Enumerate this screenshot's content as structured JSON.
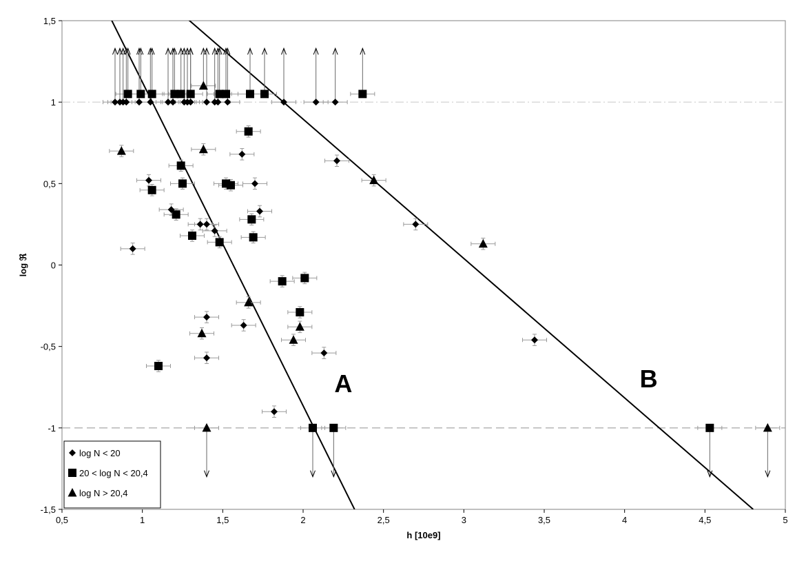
{
  "chart_data": {
    "type": "scatter",
    "xlabel": "h [10e9]",
    "ylabel": "log ℜ",
    "xlim": [
      0.5,
      5
    ],
    "ylim": [
      -1.5,
      1.5
    ],
    "xticks": [
      "0,5",
      "1",
      "1,5",
      "2",
      "2,5",
      "3",
      "3,5",
      "4",
      "4,5",
      "5"
    ],
    "xtick_values": [
      0.5,
      1,
      1.5,
      2,
      2.5,
      3,
      3.5,
      4,
      4.5,
      5
    ],
    "yticks": [
      "1,5",
      "1",
      "0,5",
      "0",
      "-0,5",
      "-1",
      "-1,5"
    ],
    "ytick_values": [
      1.5,
      1,
      0.5,
      0,
      -0.5,
      -1,
      -1.5
    ],
    "grid": false,
    "reference_lines": [
      {
        "y": 1,
        "style": "dashed"
      },
      {
        "y": -1,
        "style": "dashed"
      }
    ],
    "fit_lines": [
      {
        "label": "A",
        "points": [
          [
            0.8,
            1.52
          ],
          [
            2.32,
            -1.5
          ]
        ],
        "label_at": [
          2.25,
          -0.78
        ]
      },
      {
        "label": "B",
        "points": [
          [
            1.27,
            1.52
          ],
          [
            4.8,
            -1.5
          ]
        ],
        "label_at": [
          4.15,
          -0.75
        ]
      }
    ],
    "legend": {
      "placement": "bottom-left",
      "entries": [
        {
          "marker": "diamond",
          "label": "log N < 20"
        },
        {
          "marker": "square",
          "label": "20 < log N < 20,4"
        },
        {
          "marker": "triangle",
          "label": "log N > 20,4"
        }
      ]
    },
    "series": [
      {
        "marker": "diamond",
        "points": [
          {
            "x": 0.94,
            "y": 0.1
          },
          {
            "x": 1.04,
            "y": 0.52
          },
          {
            "x": 1.18,
            "y": 0.34
          },
          {
            "x": 1.36,
            "y": 0.25
          },
          {
            "x": 1.4,
            "y": 0.25
          },
          {
            "x": 1.45,
            "y": 0.21
          },
          {
            "x": 1.62,
            "y": 0.68
          },
          {
            "x": 1.7,
            "y": 0.5
          },
          {
            "x": 1.73,
            "y": 0.33
          },
          {
            "x": 1.4,
            "y": -0.32
          },
          {
            "x": 1.63,
            "y": -0.37
          },
          {
            "x": 1.4,
            "y": -0.57
          },
          {
            "x": 1.82,
            "y": -0.9
          },
          {
            "x": 2.13,
            "y": -0.54
          },
          {
            "x": 2.21,
            "y": 0.64
          },
          {
            "x": 2.7,
            "y": 0.25
          },
          {
            "x": 3.44,
            "y": -0.46
          }
        ]
      },
      {
        "marker": "diamond",
        "limit": "lower",
        "points": [
          {
            "x": 0.83,
            "y": 1
          },
          {
            "x": 0.86,
            "y": 1
          },
          {
            "x": 0.88,
            "y": 1
          },
          {
            "x": 0.9,
            "y": 1
          },
          {
            "x": 0.98,
            "y": 1
          },
          {
            "x": 1.05,
            "y": 1
          },
          {
            "x": 1.16,
            "y": 1
          },
          {
            "x": 1.19,
            "y": 1
          },
          {
            "x": 1.26,
            "y": 1
          },
          {
            "x": 1.28,
            "y": 1
          },
          {
            "x": 1.3,
            "y": 1
          },
          {
            "x": 1.4,
            "y": 1
          },
          {
            "x": 1.45,
            "y": 1
          },
          {
            "x": 1.47,
            "y": 1
          },
          {
            "x": 1.53,
            "y": 1
          },
          {
            "x": 1.88,
            "y": 1
          },
          {
            "x": 2.08,
            "y": 1
          },
          {
            "x": 2.2,
            "y": 1
          }
        ]
      },
      {
        "marker": "square",
        "points": [
          {
            "x": 1.06,
            "y": 0.46
          },
          {
            "x": 1.21,
            "y": 0.31
          },
          {
            "x": 1.24,
            "y": 0.61
          },
          {
            "x": 1.25,
            "y": 0.5
          },
          {
            "x": 1.31,
            "y": 0.18
          },
          {
            "x": 1.48,
            "y": 0.14
          },
          {
            "x": 1.52,
            "y": 0.5
          },
          {
            "x": 1.55,
            "y": 0.49
          },
          {
            "x": 1.66,
            "y": 0.82
          },
          {
            "x": 1.68,
            "y": 0.28
          },
          {
            "x": 1.69,
            "y": 0.17
          },
          {
            "x": 1.87,
            "y": -0.1
          },
          {
            "x": 2.01,
            "y": -0.08
          },
          {
            "x": 1.98,
            "y": -0.29
          },
          {
            "x": 1.1,
            "y": -0.62
          }
        ]
      },
      {
        "marker": "square",
        "limit": "lower",
        "points": [
          {
            "x": 0.91,
            "y": 1.05
          },
          {
            "x": 0.99,
            "y": 1.05
          },
          {
            "x": 1.06,
            "y": 1.05
          },
          {
            "x": 1.2,
            "y": 1.05
          },
          {
            "x": 1.24,
            "y": 1.05
          },
          {
            "x": 1.3,
            "y": 1.05
          },
          {
            "x": 1.48,
            "y": 1.05
          },
          {
            "x": 1.52,
            "y": 1.05
          },
          {
            "x": 1.67,
            "y": 1.05
          },
          {
            "x": 1.76,
            "y": 1.05
          },
          {
            "x": 2.37,
            "y": 1.05
          }
        ]
      },
      {
        "marker": "square",
        "limit": "upper",
        "points": [
          {
            "x": 2.06,
            "y": -1
          },
          {
            "x": 2.19,
            "y": -1
          },
          {
            "x": 4.53,
            "y": -1
          }
        ]
      },
      {
        "marker": "triangle",
        "points": [
          {
            "x": 0.87,
            "y": 0.7
          },
          {
            "x": 1.38,
            "y": 0.71
          },
          {
            "x": 2.44,
            "y": 0.52
          },
          {
            "x": 3.12,
            "y": 0.13
          },
          {
            "x": 1.66,
            "y": -0.23
          },
          {
            "x": 1.37,
            "y": -0.42
          },
          {
            "x": 1.94,
            "y": -0.46
          },
          {
            "x": 1.98,
            "y": -0.38
          }
        ]
      },
      {
        "marker": "triangle",
        "limit": "lower",
        "points": [
          {
            "x": 1.38,
            "y": 1.1
          }
        ]
      },
      {
        "marker": "triangle",
        "limit": "upper",
        "points": [
          {
            "x": 1.4,
            "y": -1
          },
          {
            "x": 4.89,
            "y": -1
          }
        ]
      }
    ]
  }
}
